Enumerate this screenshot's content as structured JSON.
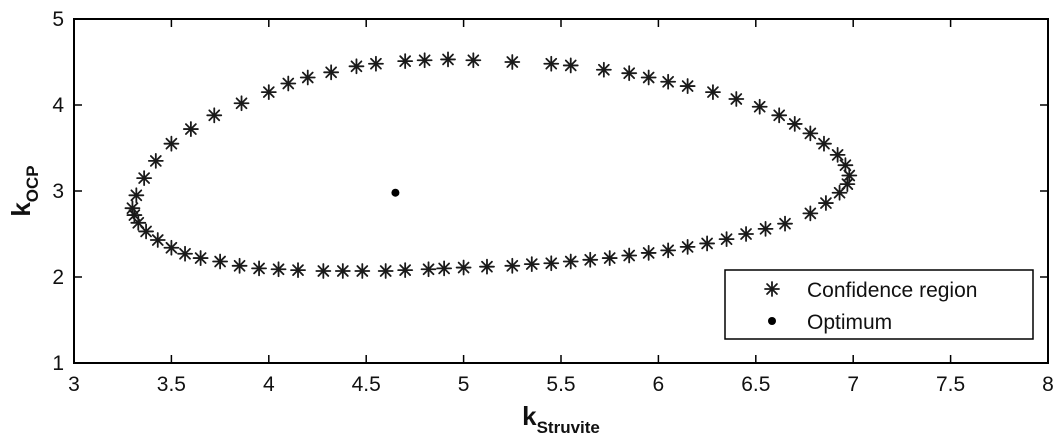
{
  "chart_data": {
    "type": "scatter",
    "title": "",
    "xlabel": "k",
    "xlabel_sub": "Struvite",
    "ylabel": "k",
    "ylabel_sub": "OCP",
    "xlim": [
      3,
      8
    ],
    "ylim": [
      1,
      5
    ],
    "x_ticks": [
      "3",
      "3.5",
      "4",
      "4.5",
      "5",
      "5.5",
      "6",
      "6.5",
      "7",
      "7.5",
      "8"
    ],
    "y_ticks": [
      "1",
      "2",
      "3",
      "4",
      "5"
    ],
    "grid": false,
    "legend_position": "bottom-right",
    "series": [
      {
        "name": "Confidence region",
        "marker": "asterisk",
        "color": "#1a1a1a",
        "x": [
          3.3,
          3.32,
          3.36,
          3.42,
          3.5,
          3.6,
          3.72,
          3.86,
          4.0,
          4.1,
          4.2,
          4.32,
          4.45,
          4.55,
          4.7,
          4.8,
          4.92,
          5.05,
          5.25,
          5.45,
          5.55,
          5.72,
          5.85,
          5.95,
          6.05,
          6.15,
          6.28,
          6.4,
          6.52,
          6.62,
          6.7,
          6.78,
          6.85,
          6.92,
          6.96,
          6.98,
          6.97,
          6.93,
          6.86,
          6.78,
          6.65,
          6.55,
          6.45,
          6.35,
          6.25,
          6.15,
          6.05,
          5.95,
          5.85,
          5.75,
          5.65,
          5.55,
          5.45,
          5.35,
          5.25,
          5.12,
          5.0,
          4.9,
          4.82,
          4.7,
          4.6,
          4.48,
          4.38,
          4.28,
          4.15,
          4.05,
          3.95,
          3.85,
          3.75,
          3.65,
          3.57,
          3.5,
          3.43,
          3.37,
          3.33,
          3.31
        ],
        "y": [
          2.8,
          2.95,
          3.15,
          3.35,
          3.55,
          3.72,
          3.88,
          4.02,
          4.15,
          4.25,
          4.32,
          4.38,
          4.45,
          4.48,
          4.51,
          4.52,
          4.53,
          4.52,
          4.5,
          4.48,
          4.46,
          4.41,
          4.37,
          4.32,
          4.27,
          4.22,
          4.15,
          4.07,
          3.98,
          3.88,
          3.78,
          3.67,
          3.55,
          3.42,
          3.3,
          3.18,
          3.08,
          2.98,
          2.86,
          2.74,
          2.62,
          2.56,
          2.5,
          2.44,
          2.39,
          2.35,
          2.31,
          2.28,
          2.25,
          2.22,
          2.2,
          2.18,
          2.16,
          2.15,
          2.13,
          2.12,
          2.11,
          2.1,
          2.09,
          2.08,
          2.07,
          2.07,
          2.07,
          2.07,
          2.08,
          2.09,
          2.1,
          2.13,
          2.18,
          2.22,
          2.27,
          2.34,
          2.43,
          2.53,
          2.63,
          2.72
        ]
      },
      {
        "name": "Optimum",
        "marker": "dot",
        "color": "#000000",
        "x": [
          4.65
        ],
        "y": [
          2.98
        ]
      }
    ]
  }
}
